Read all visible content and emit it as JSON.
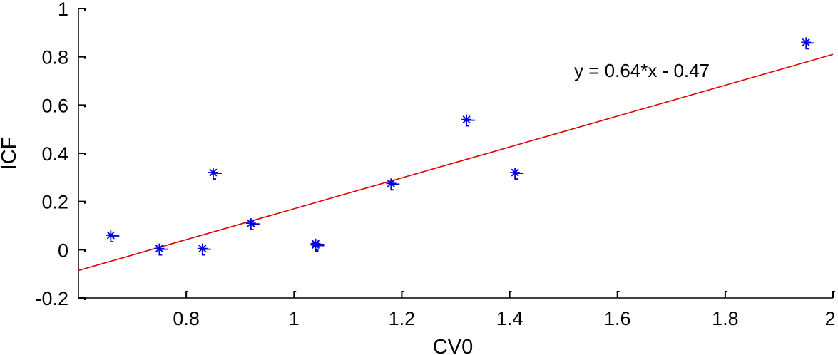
{
  "chart_data": {
    "type": "scatter",
    "xlabel": "CV0",
    "ylabel": "ICF",
    "xlim": [
      0.6,
      2.0
    ],
    "ylim": [
      -0.2,
      1.0
    ],
    "xticks": [
      "0.8",
      "1",
      "1.2",
      "1.4",
      "1.6",
      "1.8",
      "2"
    ],
    "yticks": [
      "-0.2",
      "0",
      "0.2",
      "0.4",
      "0.6",
      "0.8",
      "1"
    ],
    "grid": false,
    "marker": "asterisk",
    "marker_color": "#0000dd",
    "line_color": "#dd0000",
    "points": [
      {
        "x": 0.66,
        "y": 0.06
      },
      {
        "x": 0.75,
        "y": 0.005
      },
      {
        "x": 0.83,
        "y": 0.005
      },
      {
        "x": 0.85,
        "y": 0.32
      },
      {
        "x": 0.92,
        "y": 0.11
      },
      {
        "x": 1.04,
        "y": 0.02
      },
      {
        "x": 1.04,
        "y": 0.025
      },
      {
        "x": 1.18,
        "y": 0.275
      },
      {
        "x": 1.32,
        "y": 0.54
      },
      {
        "x": 1.41,
        "y": 0.32
      },
      {
        "x": 1.95,
        "y": 0.86
      }
    ],
    "fit": {
      "slope": 0.64,
      "intercept": -0.47,
      "label": "y = 0.64*x - 0.47",
      "x_range": [
        0.6,
        2.0
      ]
    }
  }
}
